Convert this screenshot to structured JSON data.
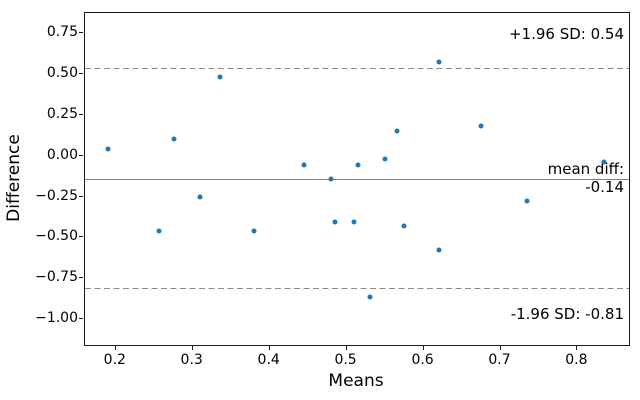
{
  "chart_data": {
    "type": "scatter",
    "title": "",
    "xlabel": "Means",
    "ylabel": "Difference",
    "xlim": [
      0.16,
      0.867
    ],
    "ylim": [
      -1.16,
      0.875
    ],
    "grid": false,
    "legend": false,
    "xticks": [
      0.2,
      0.3,
      0.4,
      0.5,
      0.6,
      0.7,
      0.8
    ],
    "xtick_labels": [
      "0.2",
      "0.3",
      "0.4",
      "0.5",
      "0.6",
      "0.7",
      "0.8"
    ],
    "yticks": [
      0.75,
      0.5,
      0.25,
      0.0,
      -0.25,
      -0.5,
      -0.75,
      -1.0
    ],
    "ytick_labels": [
      "0.75",
      "0.50",
      "0.25",
      "0.00",
      "−0.25",
      "−0.50",
      "−0.75",
      "−1.00"
    ],
    "marker_color": "#1f77b4",
    "points": [
      [
        0.19,
        0.04
      ],
      [
        0.256,
        -0.46
      ],
      [
        0.275,
        0.1
      ],
      [
        0.31,
        -0.25
      ],
      [
        0.335,
        0.48
      ],
      [
        0.38,
        -0.46
      ],
      [
        0.445,
        -0.055
      ],
      [
        0.48,
        -0.14
      ],
      [
        0.485,
        -0.405
      ],
      [
        0.51,
        -0.405
      ],
      [
        0.515,
        -0.055
      ],
      [
        0.53,
        -0.865
      ],
      [
        0.55,
        -0.02
      ],
      [
        0.565,
        0.15
      ],
      [
        0.575,
        -0.43
      ],
      [
        0.62,
        0.575
      ],
      [
        0.62,
        -0.58
      ],
      [
        0.675,
        0.185
      ],
      [
        0.735,
        -0.275
      ],
      [
        0.835,
        -0.04
      ]
    ],
    "lines": {
      "mean": {
        "value": -0.14,
        "style": "solid",
        "color": "#808080"
      },
      "upper_loa": {
        "value": 0.54,
        "style": "dashed",
        "color": "#8a8a8a"
      },
      "lower_loa": {
        "value": -0.81,
        "style": "dashed",
        "color": "#8a8a8a"
      }
    },
    "annotations": {
      "upper": "+1.96 SD: 0.54",
      "mean_line1": "mean diff:",
      "mean_line2": "-0.14",
      "lower": "-1.96 SD: -0.81"
    }
  },
  "colors": {
    "background": "#ffffff",
    "spine": "#1a1a1a",
    "text": "#000000"
  }
}
